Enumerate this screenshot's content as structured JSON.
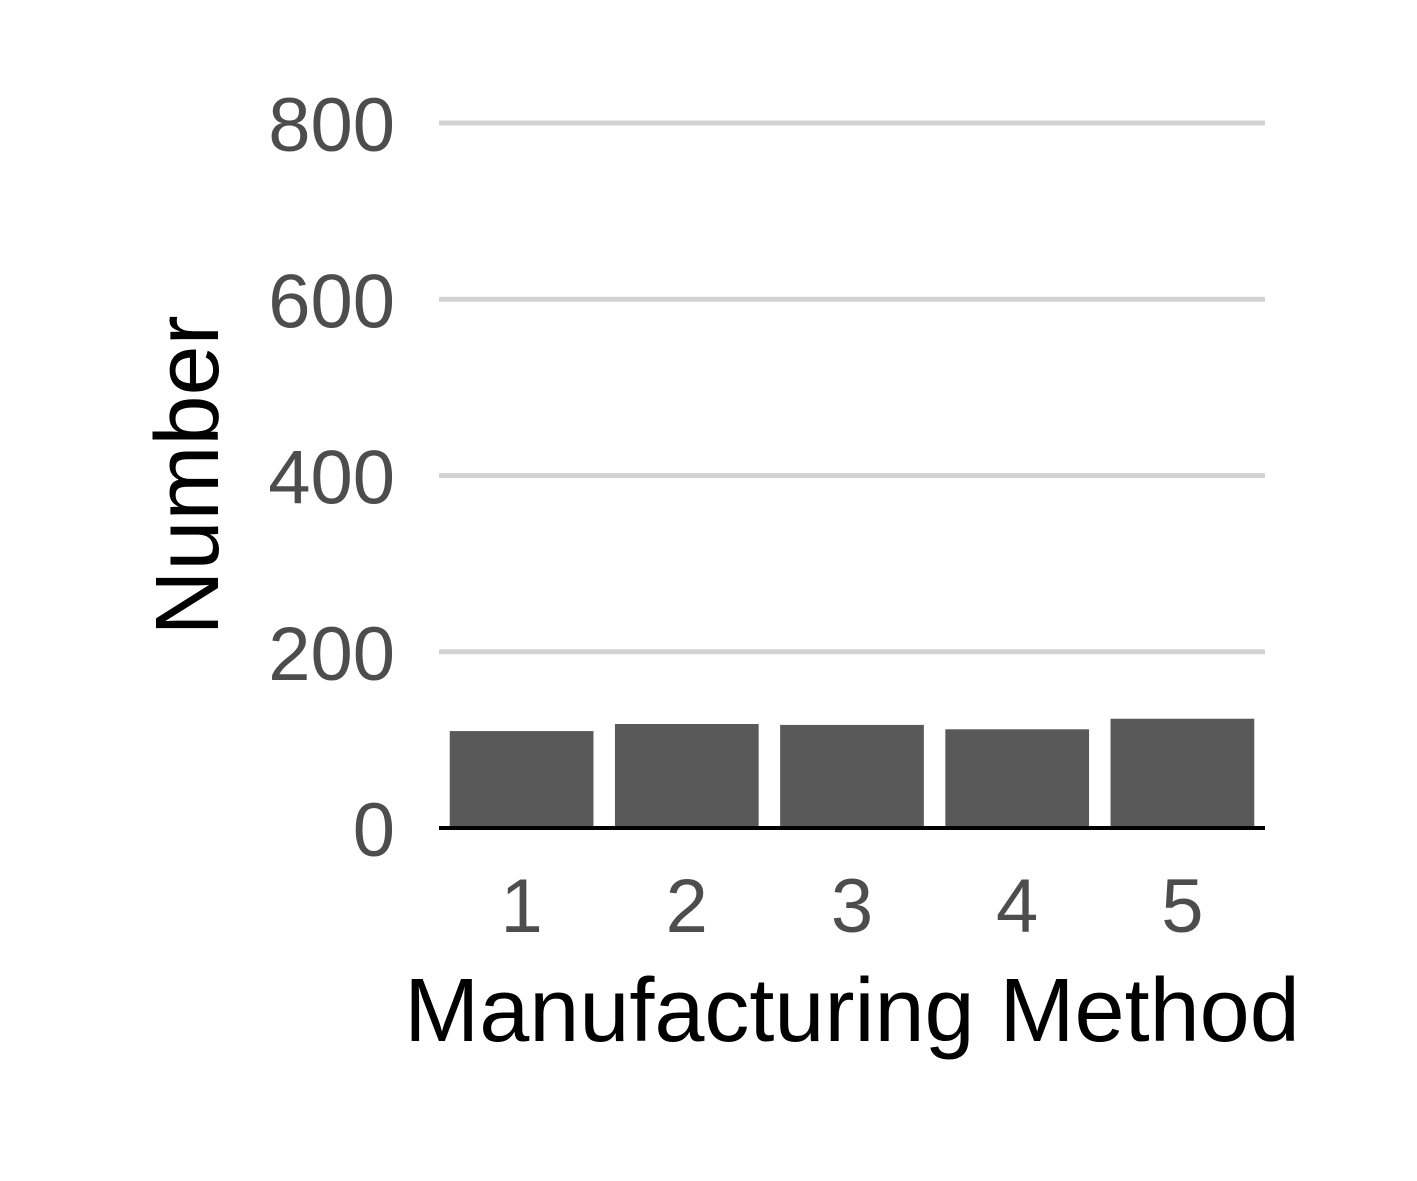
{
  "chart_data": {
    "type": "bar",
    "title": "",
    "xlabel": "Manufacturing Method",
    "ylabel": "Number",
    "categories": [
      "1",
      "2",
      "3",
      "4",
      "5"
    ],
    "values": [
      110,
      118,
      117,
      112,
      124
    ],
    "ylim": [
      0,
      800
    ],
    "yticks": [
      0,
      200,
      400,
      600,
      800
    ],
    "ytick_labels": [
      "0",
      "200",
      "400",
      "600",
      "800"
    ],
    "grid": "horizontal",
    "legend": "none",
    "colors": {
      "bar": "#595959",
      "grid": "#d3d3d3",
      "axis": "#000000",
      "tick_text": "#4d4d4d"
    }
  }
}
